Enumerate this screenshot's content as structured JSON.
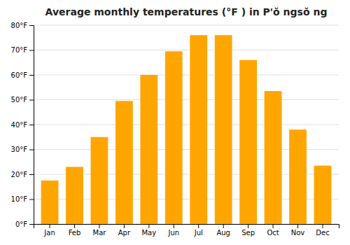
{
  "chart_data": {
    "type": "bar",
    "title": "Average monthly temperatures (°F ) in P'ŏ ngsŏ ng",
    "categories": [
      "Jan",
      "Feb",
      "Mar",
      "Apr",
      "May",
      "Jun",
      "Jul",
      "Aug",
      "Sep",
      "Oct",
      "Nov",
      "Dec"
    ],
    "values": [
      17.5,
      23,
      35,
      49.5,
      60,
      69.5,
      76,
      76,
      66,
      53.5,
      38,
      23.5
    ],
    "color": "#FFA500",
    "ylim": [
      0,
      80
    ],
    "yticks": [
      {
        "value": 0,
        "label": "0°F"
      },
      {
        "value": 10,
        "label": "10°F"
      },
      {
        "value": 20,
        "label": "20°F"
      },
      {
        "value": 30,
        "label": "30°F"
      },
      {
        "value": 40,
        "label": "40°F"
      },
      {
        "value": 50,
        "label": "50°F"
      },
      {
        "value": 60,
        "label": "60°F"
      },
      {
        "value": 70,
        "label": "70°F"
      },
      {
        "value": 80,
        "label": "80°F"
      }
    ],
    "grid": true
  }
}
